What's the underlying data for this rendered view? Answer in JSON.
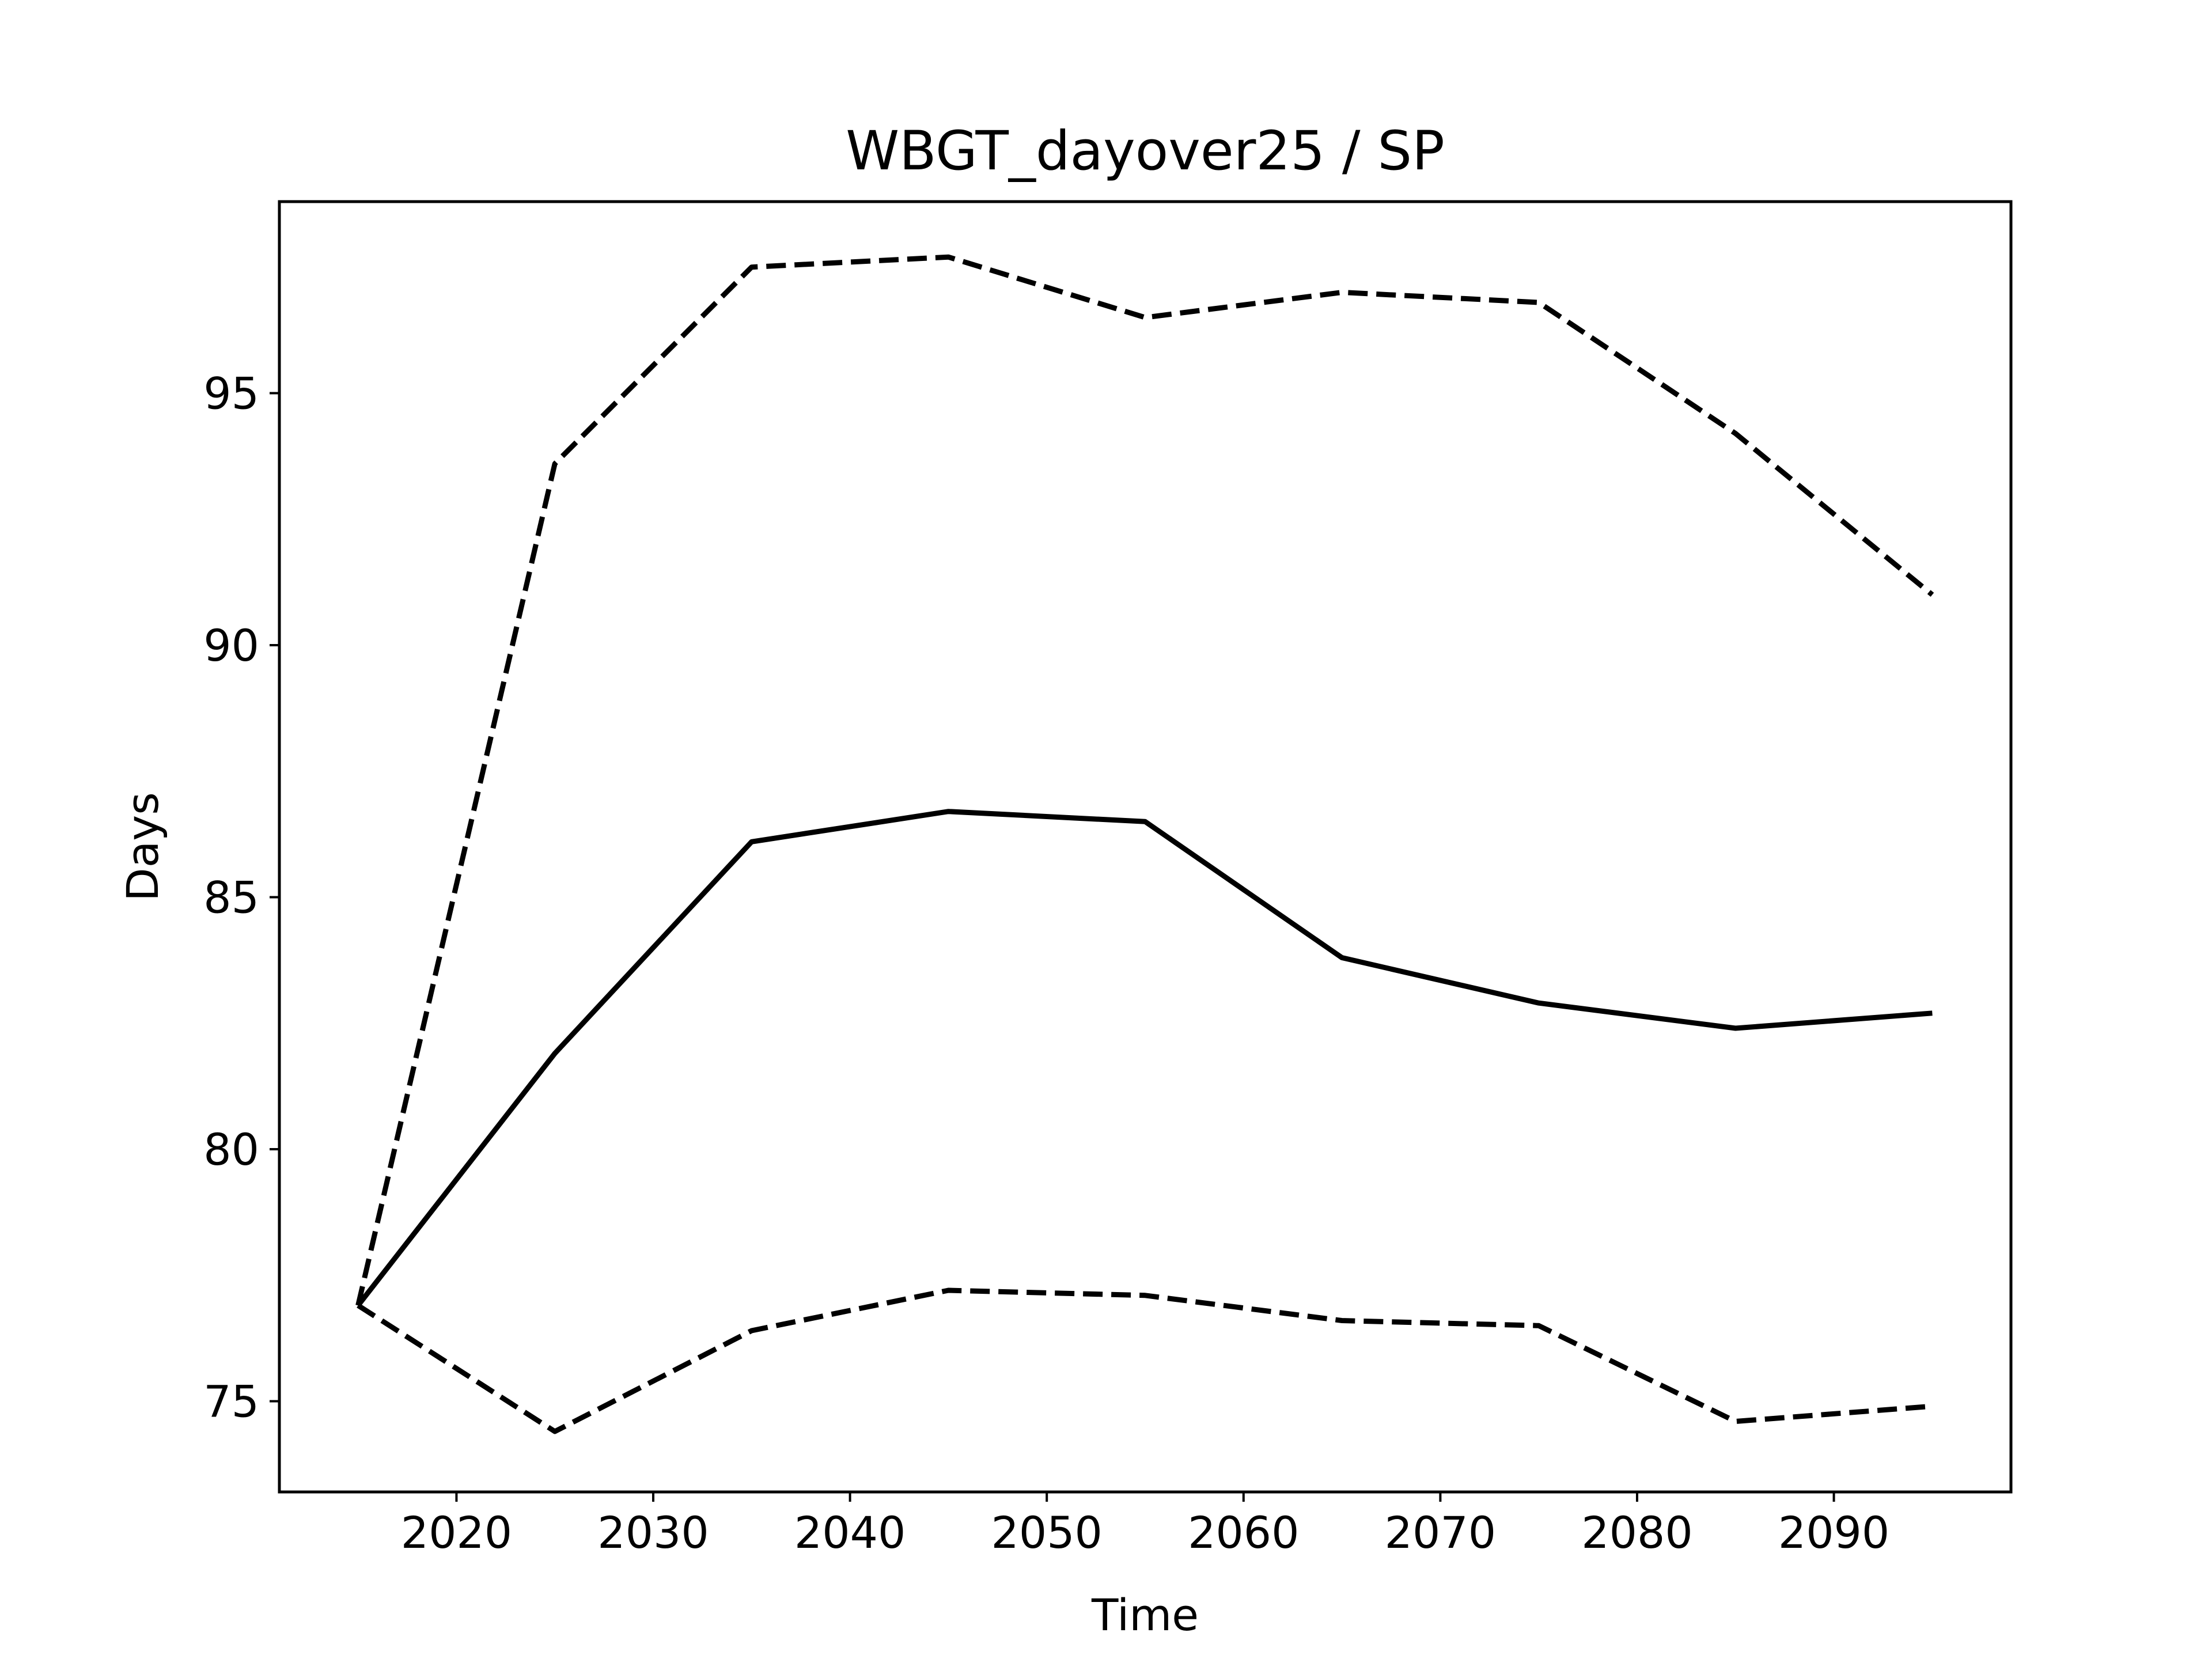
{
  "chart_data": {
    "type": "line",
    "title": "WBGT_dayover25 / SP",
    "xlabel": "Time",
    "ylabel": "Days",
    "xlim": [
      2011,
      2099
    ],
    "ylim": [
      73.2,
      98.8
    ],
    "xticks": [
      2020,
      2030,
      2040,
      2050,
      2060,
      2070,
      2080,
      2090
    ],
    "yticks": [
      75,
      80,
      85,
      90,
      95
    ],
    "grid": false,
    "legend": "none",
    "x": [
      2015,
      2025,
      2035,
      2045,
      2055,
      2065,
      2075,
      2085,
      2095
    ],
    "series": [
      {
        "style": "solid",
        "color": "#000000",
        "values": [
          76.9,
          81.9,
          86.1,
          86.7,
          86.5,
          83.8,
          82.9,
          82.4,
          82.7
        ]
      },
      {
        "style": "dashed",
        "color": "#000000",
        "values": [
          76.9,
          93.6,
          97.5,
          97.7,
          96.5,
          97.0,
          96.8,
          94.2,
          91.0
        ]
      },
      {
        "style": "dashed",
        "color": "#000000",
        "values": [
          76.9,
          74.4,
          76.4,
          77.2,
          77.1,
          76.6,
          76.5,
          74.6,
          74.9
        ]
      }
    ]
  }
}
